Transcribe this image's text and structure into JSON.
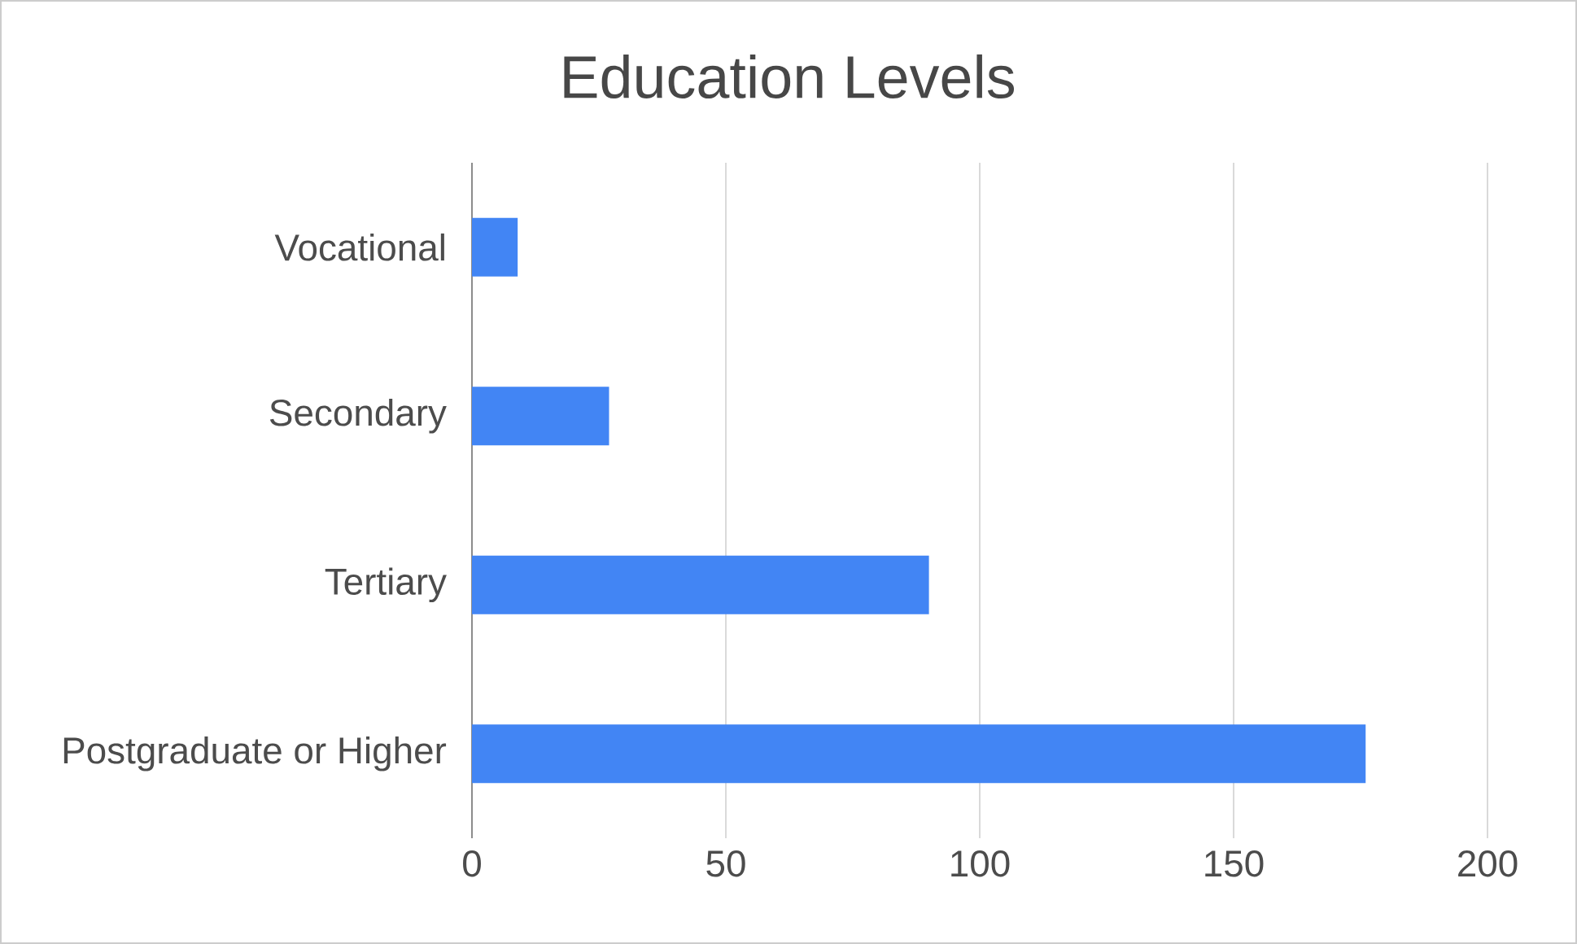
{
  "chart_data": {
    "type": "bar",
    "orientation": "horizontal",
    "title": "Education Levels",
    "categories": [
      "Vocational",
      "Secondary",
      "Tertiary",
      "Postgraduate or Higher"
    ],
    "values": [
      9,
      27,
      90,
      176
    ],
    "color": "#4285f4",
    "xlim": [
      0,
      200
    ],
    "xticks": [
      0,
      50,
      100,
      150,
      200
    ],
    "grid": "x"
  }
}
